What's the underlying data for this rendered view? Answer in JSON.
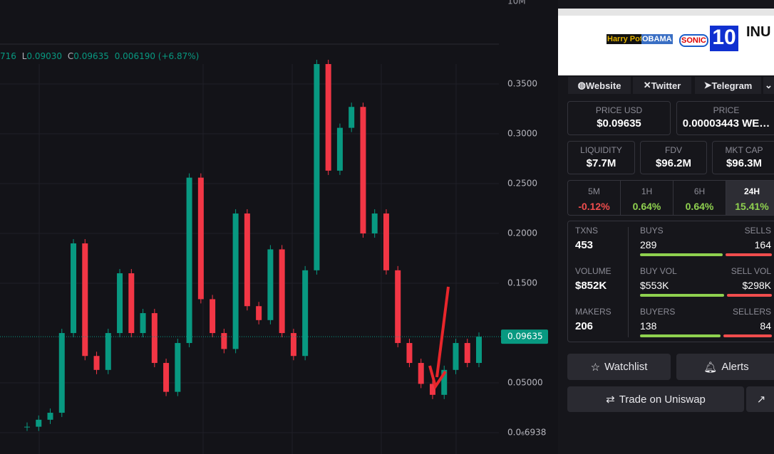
{
  "chart": {
    "type": "candlestick",
    "header": {
      "open_fragment": "716",
      "low_label": "L",
      "low": "0.09030",
      "close_label": "C",
      "close": "0.09635",
      "change": "0.006190 (+6.87%)"
    },
    "volume_label": "10M",
    "ylim": [
      -0.0214,
      0.4343
    ],
    "yticks": [
      {
        "value": 6.938e-07,
        "label": "0.0₆6938"
      },
      {
        "value": 0.05,
        "label": "0.05000"
      },
      {
        "value": 0.15,
        "label": "0.1500"
      },
      {
        "value": 0.2,
        "label": "0.2000"
      },
      {
        "value": 0.25,
        "label": "0.2500"
      },
      {
        "value": 0.3,
        "label": "0.3000"
      },
      {
        "value": 0.35,
        "label": "0.3500"
      }
    ],
    "last_price": 0.09635,
    "values": [
      0.006,
      0.013,
      0.02,
      0.1,
      0.19,
      0.077,
      0.063,
      0.1,
      0.16,
      0.1,
      0.12,
      0.07,
      0.041,
      0.09,
      0.256,
      0.134,
      0.1,
      0.084,
      0.22,
      0.127,
      0.113,
      0.184,
      0.1,
      0.077,
      0.163,
      0.37,
      0.263,
      0.306,
      0.327,
      0.2,
      0.22,
      0.163,
      0.09,
      0.07,
      0.049,
      0.038,
      0.063,
      0.09,
      0.07,
      0.09635
    ]
  },
  "banner": {
    "items": [
      "Harry Potter",
      "OBAMA",
      "SONIC",
      "10",
      "INU"
    ]
  },
  "links": [
    "Website",
    "Twitter",
    "Telegram"
  ],
  "prices": [
    {
      "label": "PRICE USD",
      "value": "$0.09635"
    },
    {
      "label": "PRICE",
      "value": "0.00003443 WE…"
    }
  ],
  "metrics": [
    {
      "label": "LIQUIDITY",
      "value": "$7.7M"
    },
    {
      "label": "FDV",
      "value": "$96.2M"
    },
    {
      "label": "MKT CAP",
      "value": "$96.3M"
    }
  ],
  "timeframes": [
    {
      "label": "5M",
      "value": "-0.12%"
    },
    {
      "label": "1H",
      "value": "0.64%"
    },
    {
      "label": "6H",
      "value": "0.64%"
    },
    {
      "label": "24H",
      "value": "15.41%"
    }
  ],
  "stats": [
    {
      "label": "TXNS",
      "value": "453",
      "left_label": "BUYS",
      "left": "289",
      "right_label": "SELLS",
      "right": "164",
      "left_n": 289,
      "right_n": 164
    },
    {
      "label": "VOLUME",
      "value": "$852K",
      "left_label": "BUY VOL",
      "left": "$553K",
      "right_label": "SELL VOL",
      "right": "$298K",
      "left_n": 553,
      "right_n": 298
    },
    {
      "label": "MAKERS",
      "value": "206",
      "left_label": "BUYERS",
      "left": "138",
      "right_label": "SELLERS",
      "right": "84",
      "left_n": 138,
      "right_n": 84
    }
  ],
  "actions": {
    "watchlist": "Watchlist",
    "alerts": "Alerts",
    "trade": "Trade on Uniswap"
  }
}
